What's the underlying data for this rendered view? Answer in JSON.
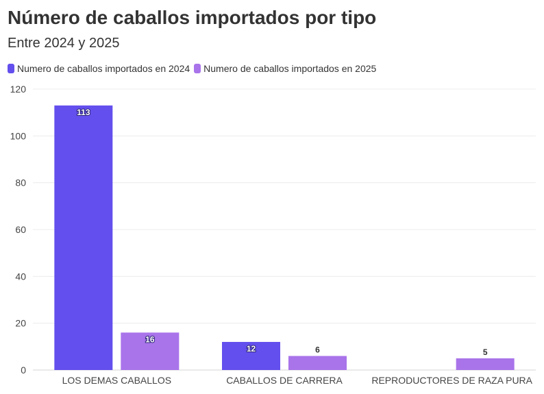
{
  "header": {
    "title": "Número de caballos importados por tipo",
    "subtitle": "Entre 2024 y 2025"
  },
  "colors": {
    "series_2024": "#634fed",
    "series_2025": "#a974ea",
    "text": "#333333",
    "grid": "#ececec"
  },
  "chart_data": {
    "type": "bar",
    "title": "Número de caballos importados por tipo",
    "subtitle": "Entre 2024 y 2025",
    "categories": [
      "LOS DEMAS CABALLOS",
      "CABALLOS DE CARRERA",
      "REPRODUCTORES DE RAZA PURA"
    ],
    "series": [
      {
        "name": "Numero de caballos importados en 2024",
        "values": [
          113,
          12,
          null
        ]
      },
      {
        "name": "Numero de caballos importados en 2025",
        "values": [
          16,
          6,
          5
        ]
      }
    ],
    "xlabel": "",
    "ylabel": "",
    "ylim": [
      0,
      120
    ],
    "yticks": [
      0,
      20,
      40,
      60,
      80,
      100,
      120
    ],
    "grid": true,
    "legend_position": "top-left"
  }
}
